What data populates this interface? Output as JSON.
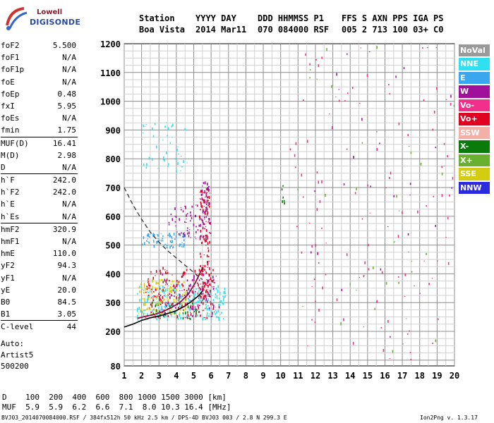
{
  "logo": {
    "line1": "Lowell",
    "line2": "DIGISONDE"
  },
  "header": {
    "labels": [
      "Station",
      "YYYY DAY",
      "DDD HHMMSS P1",
      "FFS S AXN PPS IGA PS"
    ],
    "values": [
      "Boa Vista",
      "2014 Mar11",
      "070 084000 RSF",
      "005 2 713 100 03+ C0"
    ]
  },
  "params": [
    {
      "name": "foF2",
      "value": "5.500"
    },
    {
      "name": "foF1",
      "value": "N/A"
    },
    {
      "name": "foF1p",
      "value": "N/A"
    },
    {
      "name": "foE",
      "value": "N/A"
    },
    {
      "name": "foEp",
      "value": "0.48"
    },
    {
      "name": "fxI",
      "value": "5.95"
    },
    {
      "name": "foEs",
      "value": "N/A"
    },
    {
      "name": "fmin",
      "value": "1.75"
    },
    {
      "name": "MUF(D)",
      "value": "16.41"
    },
    {
      "name": "M(D)",
      "value": "2.98"
    },
    {
      "name": "D",
      "value": "N/A"
    },
    {
      "name": "h`F",
      "value": "242.0"
    },
    {
      "name": "h`F2",
      "value": "242.0"
    },
    {
      "name": "h`E",
      "value": "N/A"
    },
    {
      "name": "h`Es",
      "value": "N/A"
    },
    {
      "name": "hmF2",
      "value": "320.9"
    },
    {
      "name": "hmF1",
      "value": "N/A"
    },
    {
      "name": "hmE",
      "value": "110.0"
    },
    {
      "name": "yF2",
      "value": "94.3"
    },
    {
      "name": "yF1",
      "value": "N/A"
    },
    {
      "name": "yE",
      "value": "20.0"
    },
    {
      "name": "B0",
      "value": "84.5"
    },
    {
      "name": "B1",
      "value": "3.05"
    },
    {
      "name": "C-level",
      "value": "44"
    }
  ],
  "auto": {
    "line1": "Auto:",
    "line2": "Artist5",
    "line3": "500200"
  },
  "legend": [
    {
      "label": "NoVal",
      "color": "#9a9a9a"
    },
    {
      "label": "NNE",
      "color": "#2ee0f0"
    },
    {
      "label": "E",
      "color": "#3aa6f0"
    },
    {
      "label": "W",
      "color": "#a0109a"
    },
    {
      "label": "Vo-",
      "color": "#f0308a"
    },
    {
      "label": "Vo+",
      "color": "#e00020"
    },
    {
      "label": "SSW",
      "color": "#f2b0a8"
    },
    {
      "label": "X-",
      "color": "#0a7a0a"
    },
    {
      "label": "X+",
      "color": "#6ab030"
    },
    {
      "label": "SSE",
      "color": "#d4cc10"
    },
    {
      "label": "NNW",
      "color": "#2a2ae0"
    }
  ],
  "dmuf": {
    "d_label": "D",
    "d_values": "100  200  400  600  800 1000 1500 3000 [km]",
    "muf_label": "MUF",
    "muf_values": "5.9  5.9  6.2  6.6  7.1  8.0 10.3 16.4 [MHz]"
  },
  "footer": {
    "left": "BVJ03_2014070084000.RSF / 384fx512h 50 kHz 2.5 km / DPS-4D BVJ03 003 / 2.8 N 299.3 E",
    "right": "Ion2Png v. 1.3.17"
  },
  "chart_data": {
    "type": "scatter",
    "xlabel": "",
    "ylabel": "",
    "xlim": [
      1,
      20
    ],
    "ylim": [
      80,
      1200
    ],
    "xticks": [
      1,
      2,
      3,
      4,
      5,
      6,
      7,
      8,
      9,
      10,
      11,
      12,
      13,
      14,
      15,
      16,
      17,
      18,
      19,
      20
    ],
    "yticks": [
      80,
      200,
      300,
      400,
      500,
      600,
      700,
      800,
      900,
      1000,
      1100,
      1200
    ],
    "grid": true,
    "profile_curve": {
      "x": [
        1.0,
        1.5,
        2.0,
        2.5,
        3.0,
        3.5,
        4.0,
        4.5,
        5.0,
        5.3,
        5.5
      ],
      "y": [
        215,
        225,
        238,
        247,
        253,
        262,
        272,
        288,
        310,
        325,
        340
      ]
    },
    "virtual_trace_curve": {
      "x": [
        1.75,
        2.2,
        2.7,
        3.2,
        3.7,
        4.2,
        4.7,
        5.1,
        5.5
      ],
      "y": [
        245,
        252,
        258,
        268,
        282,
        300,
        330,
        370,
        420
      ]
    },
    "dashed_curve": {
      "x": [
        1.0,
        1.5,
        2.0,
        2.5,
        3.0,
        3.5,
        4.0,
        4.5,
        5.0,
        5.5
      ],
      "y": [
        700,
        640,
        590,
        545,
        510,
        480,
        455,
        430,
        405,
        380
      ]
    },
    "clusters": [
      {
        "name": "F2 low o-trace",
        "color_key": "NNE",
        "x": [
          1.7,
          6.8
        ],
        "y": [
          240,
          360
        ],
        "n": 260
      },
      {
        "name": "F2 low Vo+",
        "color_key": "Vo+",
        "x": [
          2.2,
          6.2
        ],
        "y": [
          245,
          420
        ],
        "n": 180
      },
      {
        "name": "F2 low SSE",
        "color_key": "SSE",
        "x": [
          1.8,
          4.5
        ],
        "y": [
          260,
          380
        ],
        "n": 140
      },
      {
        "name": "F2 low W",
        "color_key": "W",
        "x": [
          3.0,
          6.5
        ],
        "y": [
          250,
          400
        ],
        "n": 90
      },
      {
        "name": "F2 low X-",
        "color_key": "X-",
        "x": [
          2.5,
          5.5
        ],
        "y": [
          240,
          300
        ],
        "n": 30
      },
      {
        "name": "F2 column Vo+",
        "color_key": "Vo+",
        "x": [
          5.3,
          5.9
        ],
        "y": [
          320,
          700
        ],
        "n": 120
      },
      {
        "name": "F2 column W",
        "color_key": "W",
        "x": [
          5.4,
          5.9
        ],
        "y": [
          560,
          720
        ],
        "n": 40
      },
      {
        "name": "second hop E",
        "color_key": "E",
        "x": [
          2.0,
          4.5
        ],
        "y": [
          490,
          540
        ],
        "n": 70
      },
      {
        "name": "second hop W",
        "color_key": "W",
        "x": [
          3.5,
          6.0
        ],
        "y": [
          520,
          640
        ],
        "n": 70
      },
      {
        "name": "third hop NNE",
        "color_key": "NNE",
        "x": [
          2.0,
          4.6
        ],
        "y": [
          750,
          930
        ],
        "n": 45
      },
      {
        "name": "scattered Vo-",
        "color_key": "Vo-",
        "x": [
          10.5,
          20
        ],
        "y": [
          100,
          1190
        ],
        "n": 110
      },
      {
        "name": "scattered X+",
        "color_key": "X+",
        "x": [
          10.5,
          20
        ],
        "y": [
          100,
          1190
        ],
        "n": 35
      },
      {
        "name": "scattered W",
        "color_key": "W",
        "x": [
          11.5,
          20
        ],
        "y": [
          150,
          1190
        ],
        "n": 30
      },
      {
        "name": "interference 10.1MHz",
        "color_key": "X-",
        "x": [
          10.0,
          10.2
        ],
        "y": [
          640,
          720
        ],
        "n": 6
      }
    ]
  }
}
